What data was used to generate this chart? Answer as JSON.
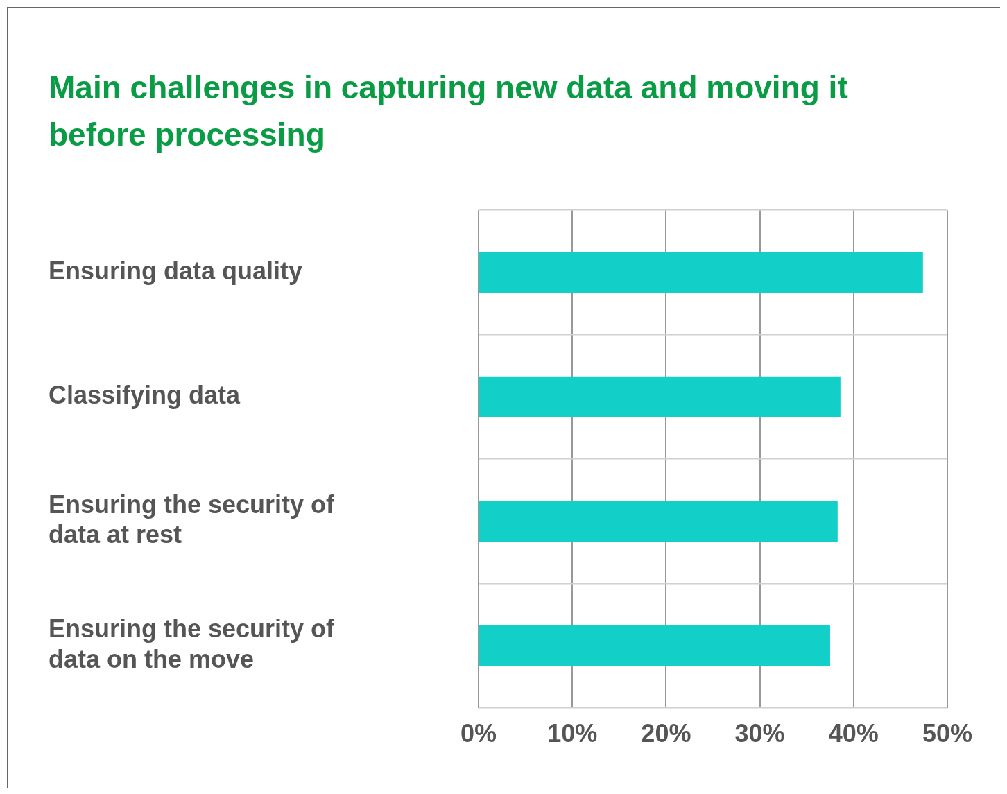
{
  "chart_data": {
    "type": "bar",
    "orientation": "horizontal",
    "title": "Main challenges in capturing new data and moving it before processing",
    "categories": [
      "Ensuring data quality",
      "Classifying data",
      "Ensuring the security of data at rest",
      "Ensuring the security of data on the move"
    ],
    "values": [
      47.4,
      38.6,
      38.3,
      37.5
    ],
    "color": "#12cfc8",
    "xlim": [
      0,
      50
    ],
    "xticks": [
      {
        "value": 0,
        "label": "0%"
      },
      {
        "value": 10,
        "label": "10%"
      },
      {
        "value": 20,
        "label": "20%"
      },
      {
        "value": 30,
        "label": "30%"
      },
      {
        "value": 40,
        "label": "40%"
      },
      {
        "value": 50,
        "label": "50%"
      }
    ],
    "grid": true,
    "legend": false
  }
}
